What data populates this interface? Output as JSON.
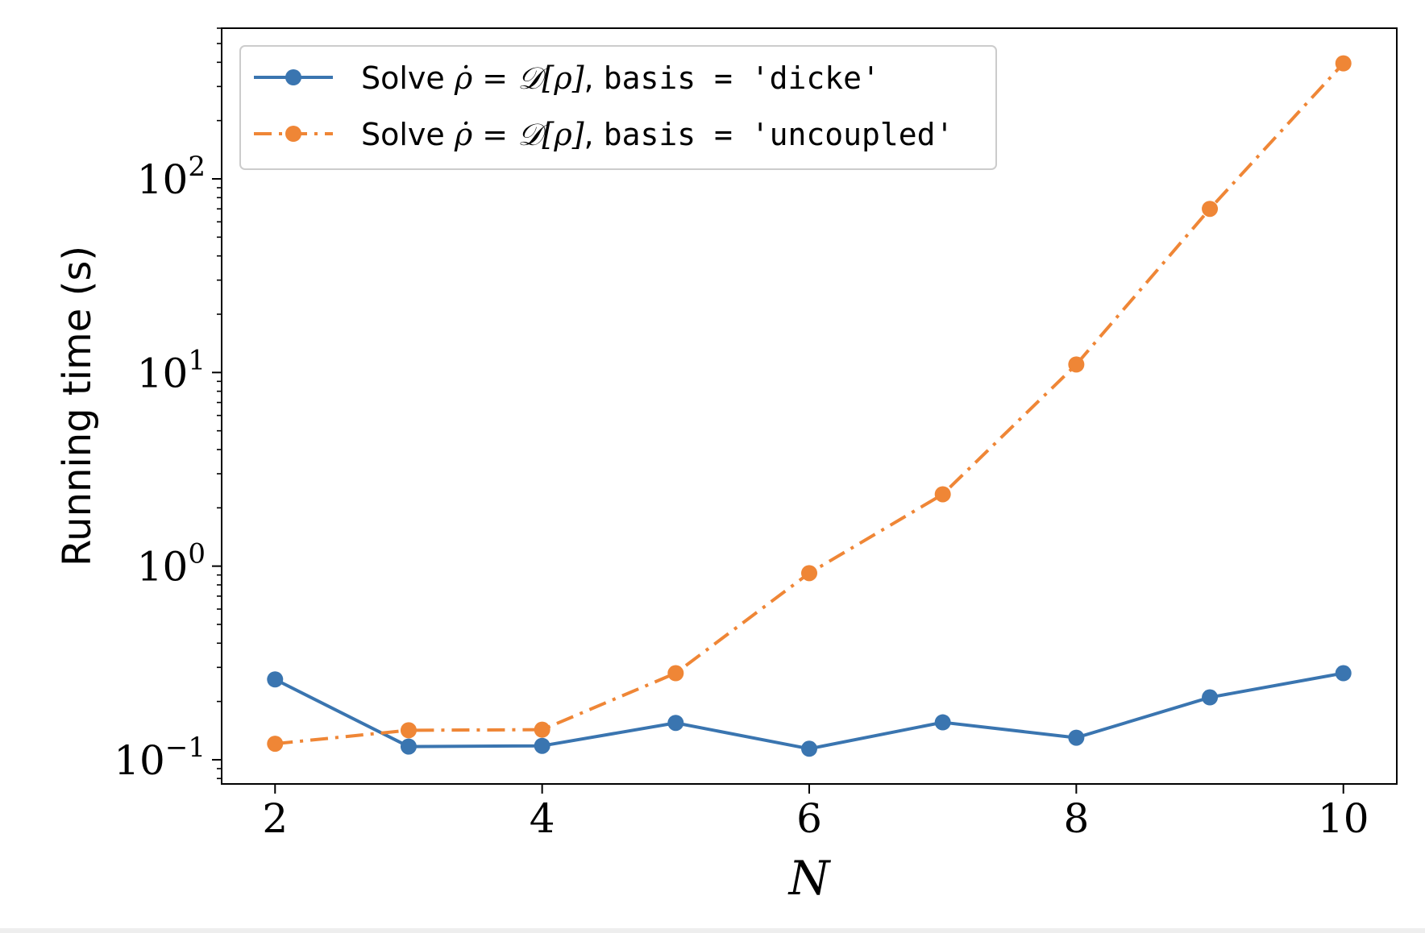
{
  "chart_data": {
    "type": "line",
    "title": "",
    "xlabel": "N",
    "ylabel": "Running time (s)",
    "yscale": "log",
    "xlim": [
      1.6,
      10.4
    ],
    "ylim": [
      0.075,
      600
    ],
    "grid": false,
    "legend_position": "top-left",
    "x_ticks": [
      2,
      4,
      6,
      8,
      10
    ],
    "y_ticks": [
      {
        "value": 0.1,
        "base": "10",
        "exp": "−1"
      },
      {
        "value": 1,
        "base": "10",
        "exp": "0"
      },
      {
        "value": 10,
        "base": "10",
        "exp": "1"
      },
      {
        "value": 100,
        "base": "10",
        "exp": "2"
      }
    ],
    "x": [
      2,
      3,
      4,
      5,
      6,
      7,
      8,
      9,
      10
    ],
    "series": [
      {
        "name_prefix": "Solve ",
        "name_math": "ρ̇ = 𝒟[ρ]",
        "name_mid": ", ",
        "name_code": "basis = 'dicke'",
        "color": "#3a75b0",
        "line_style": "solid",
        "marker": "circle",
        "values": [
          0.26,
          0.117,
          0.118,
          0.155,
          0.114,
          0.156,
          0.13,
          0.21,
          0.28
        ]
      },
      {
        "name_prefix": "Solve ",
        "name_math": "ρ̇ = 𝒟[ρ]",
        "name_mid": ", ",
        "name_code": "basis = 'uncoupled'",
        "color": "#ef8636",
        "line_style": "dashdot",
        "marker": "circle",
        "values": [
          0.121,
          0.142,
          0.143,
          0.28,
          0.92,
          2.35,
          11.0,
          70.0,
          395.0
        ]
      }
    ]
  }
}
